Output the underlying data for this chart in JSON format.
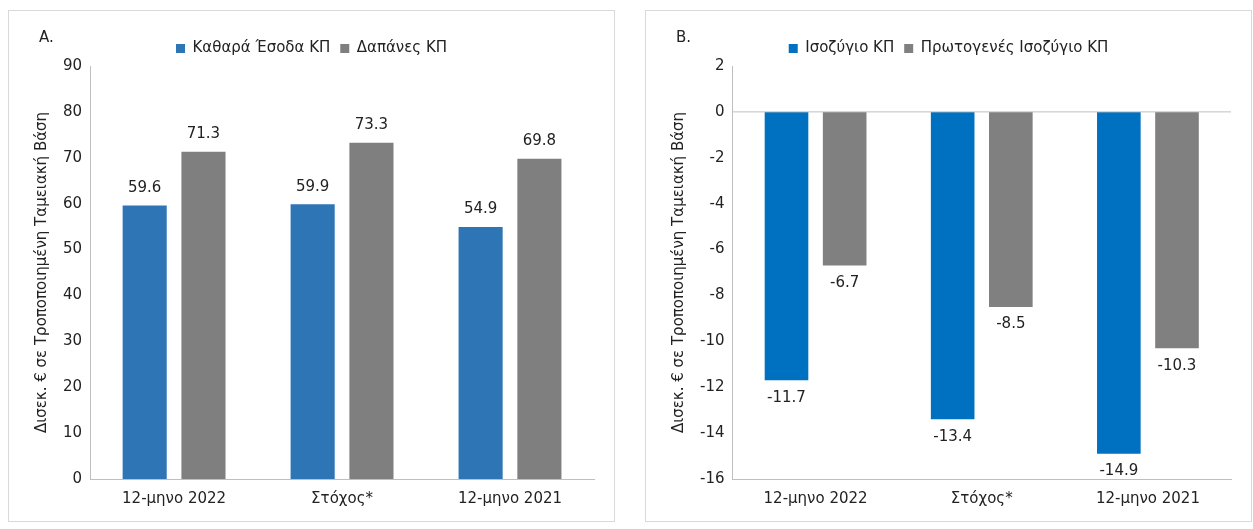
{
  "chart_data": [
    {
      "type": "bar",
      "title": "A.",
      "ylabel": "Δισεκ. € σε Τροποποιημένη Ταμειακή Βάση",
      "categories": [
        "12-μηνο 2022",
        "Στόχος*",
        "12-μηνο 2021"
      ],
      "series": [
        {
          "name": "Καθαρά Έσοδα ΚΠ",
          "color": "#2e75b6",
          "values": [
            59.6,
            59.9,
            54.9
          ]
        },
        {
          "name": "Δαπάνες ΚΠ",
          "color": "#7f7f7f",
          "values": [
            71.3,
            73.3,
            69.8
          ]
        }
      ],
      "ylim": [
        0,
        90
      ],
      "yticks": [
        0,
        10,
        20,
        30,
        40,
        50,
        60,
        70,
        80,
        90
      ],
      "legend": "top",
      "data_labels": true
    },
    {
      "type": "bar",
      "title": "B.",
      "ylabel": "Δισεκ. € σε Τροποποιημένη Ταμειακή Βάση",
      "categories": [
        "12-μηνο 2022",
        "Στόχος*",
        "12-μηνο 2021"
      ],
      "series": [
        {
          "name": "Ισοζύγιο ΚΠ",
          "color": "#0070c0",
          "values": [
            -11.7,
            -13.4,
            -14.9
          ]
        },
        {
          "name": "Πρωτογενές Ισοζύγιο ΚΠ",
          "color": "#808080",
          "values": [
            -6.7,
            -8.5,
            -10.3
          ]
        }
      ],
      "ylim": [
        -16,
        2
      ],
      "yticks": [
        -16,
        -14,
        -12,
        -10,
        -8,
        -6,
        -4,
        -2,
        0,
        2
      ],
      "legend": "top",
      "data_labels": true
    }
  ]
}
